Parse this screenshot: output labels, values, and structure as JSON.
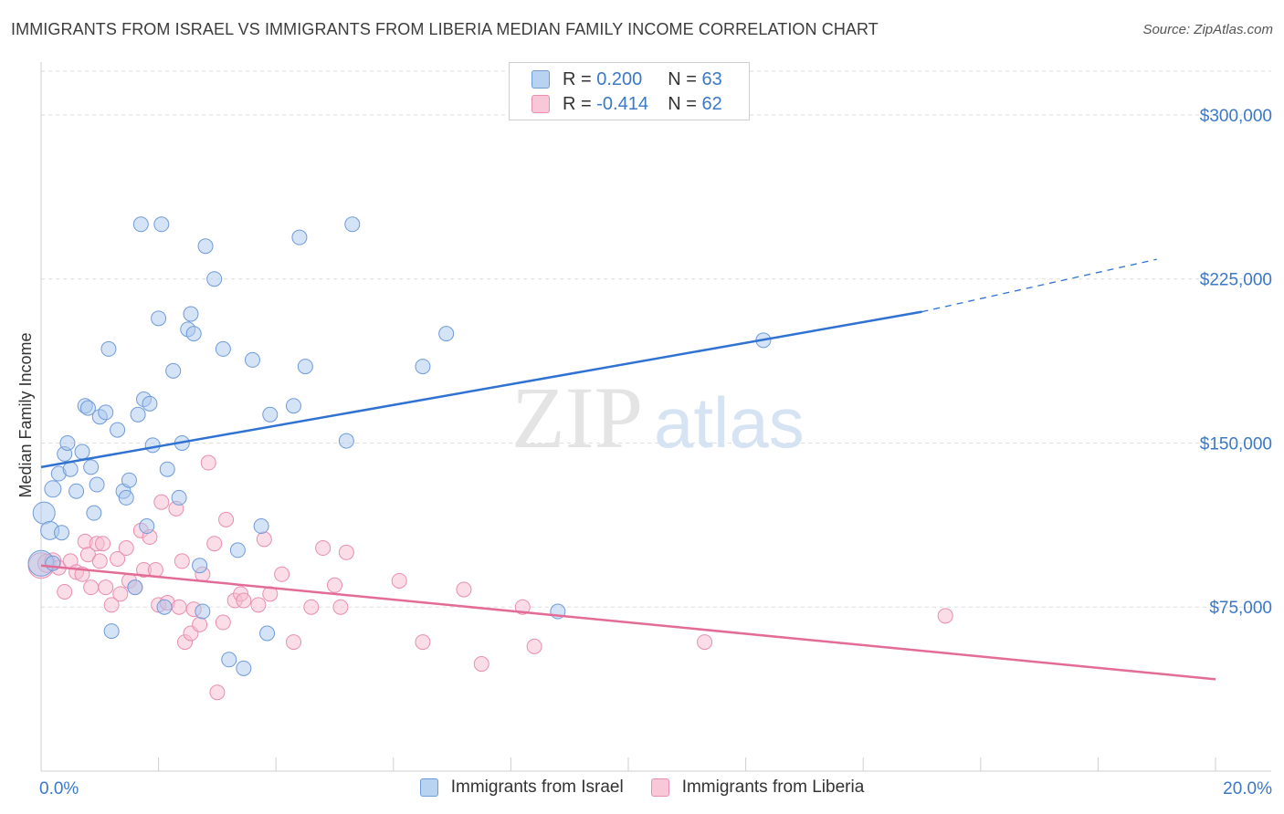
{
  "title": "IMMIGRANTS FROM ISRAEL VS IMMIGRANTS FROM LIBERIA MEDIAN FAMILY INCOME CORRELATION CHART",
  "source": "Source: ZipAtlas.com",
  "watermark": {
    "zip": "ZIP",
    "atlas": "atlas"
  },
  "colors": {
    "israel_fill": "#a9c8ee",
    "israel_stroke": "#6f9bd9",
    "israel_line": "#2f72d2",
    "liberia_fill": "#f6bcd0",
    "liberia_stroke": "#e98eae",
    "liberia_line": "#e36c97",
    "tick_text": "#3a78c8"
  },
  "legend": {
    "rows": [
      {
        "r_label": "R =",
        "r_value": "0.200",
        "n_label": "N =",
        "n_value": "63"
      },
      {
        "r_label": "R =",
        "r_value": "-0.414",
        "n_label": "N =",
        "n_value": "62"
      }
    ]
  },
  "chart_data": {
    "type": "scatter",
    "title": "IMMIGRANTS FROM ISRAEL VS IMMIGRANTS FROM LIBERIA MEDIAN FAMILY INCOME CORRELATION CHART",
    "xlabel": "",
    "ylabel": "Median Family Income",
    "xlim": [
      0,
      20
    ],
    "ylim": [
      0,
      320000
    ],
    "x_tick_labels": [
      "0.0%",
      "20.0%"
    ],
    "y_ticks": [
      {
        "value": 75000,
        "label": "$75,000"
      },
      {
        "value": 150000,
        "label": "$150,000"
      },
      {
        "value": 225000,
        "label": "$225,000"
      },
      {
        "value": 300000,
        "label": "$300,000"
      }
    ],
    "grid": true,
    "series": [
      {
        "name": "Immigrants from Israel",
        "r": 0.2,
        "n": 63,
        "trend": {
          "x0": 0.0,
          "y0": 139000,
          "x1": 15.0,
          "y1": 210000,
          "dash_to_x": 19.0,
          "dash_to_y": 234000
        },
        "points": [
          [
            0.0,
            95000,
            14
          ],
          [
            0.05,
            118000,
            12
          ],
          [
            0.15,
            110000,
            10
          ],
          [
            0.2,
            129000,
            9
          ],
          [
            0.3,
            136000,
            8
          ],
          [
            0.4,
            145000,
            8
          ],
          [
            0.45,
            150000,
            8
          ],
          [
            0.5,
            138000,
            8
          ],
          [
            0.6,
            128000,
            8
          ],
          [
            0.35,
            109000,
            8
          ],
          [
            0.7,
            146000,
            8
          ],
          [
            0.75,
            167000,
            8
          ],
          [
            0.8,
            166000,
            8
          ],
          [
            0.85,
            139000,
            8
          ],
          [
            0.9,
            118000,
            8
          ],
          [
            0.95,
            131000,
            8
          ],
          [
            1.0,
            162000,
            8
          ],
          [
            1.1,
            164000,
            8
          ],
          [
            1.15,
            193000,
            8
          ],
          [
            1.3,
            156000,
            8
          ],
          [
            1.4,
            128000,
            8
          ],
          [
            1.45,
            125000,
            8
          ],
          [
            1.5,
            133000,
            8
          ],
          [
            1.6,
            84000,
            8
          ],
          [
            1.65,
            163000,
            8
          ],
          [
            1.7,
            250000,
            8
          ],
          [
            1.75,
            170000,
            8
          ],
          [
            1.8,
            112000,
            8
          ],
          [
            1.85,
            168000,
            8
          ],
          [
            1.9,
            149000,
            8
          ],
          [
            2.0,
            207000,
            8
          ],
          [
            2.05,
            250000,
            8
          ],
          [
            2.1,
            75000,
            8
          ],
          [
            2.15,
            138000,
            8
          ],
          [
            2.25,
            183000,
            8
          ],
          [
            2.35,
            125000,
            8
          ],
          [
            2.4,
            150000,
            8
          ],
          [
            2.5,
            202000,
            8
          ],
          [
            2.55,
            209000,
            8
          ],
          [
            2.6,
            200000,
            8
          ],
          [
            2.7,
            94000,
            8
          ],
          [
            2.75,
            73000,
            8
          ],
          [
            2.8,
            240000,
            8
          ],
          [
            2.95,
            225000,
            8
          ],
          [
            3.1,
            193000,
            8
          ],
          [
            3.2,
            51000,
            8
          ],
          [
            3.35,
            101000,
            8
          ],
          [
            3.45,
            47000,
            8
          ],
          [
            3.6,
            188000,
            8
          ],
          [
            3.75,
            112000,
            8
          ],
          [
            3.85,
            63000,
            8
          ],
          [
            3.9,
            163000,
            8
          ],
          [
            4.3,
            167000,
            8
          ],
          [
            4.4,
            244000,
            8
          ],
          [
            4.5,
            185000,
            8
          ],
          [
            5.2,
            151000,
            8
          ],
          [
            5.3,
            250000,
            8
          ],
          [
            6.5,
            185000,
            8
          ],
          [
            6.9,
            200000,
            8
          ],
          [
            8.8,
            73000,
            8
          ],
          [
            12.3,
            197000,
            8
          ],
          [
            1.2,
            64000,
            8
          ],
          [
            0.2,
            95000,
            8
          ]
        ]
      },
      {
        "name": "Immigrants from Liberia",
        "r": -0.414,
        "n": 62,
        "trend": {
          "x0": 0.0,
          "y0": 94000,
          "x1": 20.0,
          "y1": 42000
        },
        "points": [
          [
            0.0,
            94000,
            14
          ],
          [
            0.1,
            95000,
            10
          ],
          [
            0.2,
            96000,
            9
          ],
          [
            0.3,
            93000,
            8
          ],
          [
            0.4,
            82000,
            8
          ],
          [
            0.5,
            96000,
            8
          ],
          [
            0.6,
            91000,
            8
          ],
          [
            0.7,
            90000,
            8
          ],
          [
            0.75,
            105000,
            8
          ],
          [
            0.8,
            99000,
            8
          ],
          [
            0.85,
            84000,
            8
          ],
          [
            0.95,
            104000,
            8
          ],
          [
            1.0,
            96000,
            8
          ],
          [
            1.05,
            104000,
            8
          ],
          [
            1.1,
            84000,
            8
          ],
          [
            1.2,
            76000,
            8
          ],
          [
            1.3,
            97000,
            8
          ],
          [
            1.35,
            81000,
            8
          ],
          [
            1.45,
            102000,
            8
          ],
          [
            1.5,
            87000,
            8
          ],
          [
            1.6,
            84000,
            8
          ],
          [
            1.7,
            110000,
            8
          ],
          [
            1.75,
            92000,
            8
          ],
          [
            1.85,
            107000,
            8
          ],
          [
            1.95,
            92000,
            8
          ],
          [
            2.0,
            76000,
            8
          ],
          [
            2.05,
            123000,
            8
          ],
          [
            2.15,
            77000,
            8
          ],
          [
            2.3,
            120000,
            8
          ],
          [
            2.35,
            75000,
            8
          ],
          [
            2.4,
            96000,
            8
          ],
          [
            2.45,
            59000,
            8
          ],
          [
            2.55,
            63000,
            8
          ],
          [
            2.6,
            74000,
            8
          ],
          [
            2.7,
            67000,
            8
          ],
          [
            2.75,
            90000,
            8
          ],
          [
            2.85,
            141000,
            8
          ],
          [
            2.95,
            104000,
            8
          ],
          [
            3.0,
            36000,
            8
          ],
          [
            3.1,
            68000,
            8
          ],
          [
            3.15,
            115000,
            8
          ],
          [
            3.3,
            78000,
            8
          ],
          [
            3.4,
            81000,
            8
          ],
          [
            3.45,
            78000,
            8
          ],
          [
            3.7,
            76000,
            8
          ],
          [
            3.8,
            106000,
            8
          ],
          [
            3.9,
            81000,
            8
          ],
          [
            4.1,
            90000,
            8
          ],
          [
            4.3,
            59000,
            8
          ],
          [
            4.6,
            75000,
            8
          ],
          [
            4.8,
            102000,
            8
          ],
          [
            5.0,
            85000,
            8
          ],
          [
            5.1,
            75000,
            8
          ],
          [
            5.2,
            100000,
            8
          ],
          [
            6.1,
            87000,
            8
          ],
          [
            6.5,
            59000,
            8
          ],
          [
            7.2,
            83000,
            8
          ],
          [
            7.5,
            49000,
            8
          ],
          [
            8.2,
            75000,
            8
          ],
          [
            8.4,
            57000,
            8
          ],
          [
            11.3,
            59000,
            8
          ],
          [
            15.4,
            71000,
            8
          ]
        ]
      }
    ]
  },
  "bottom_legend": [
    "Immigrants from Israel",
    "Immigrants from Liberia"
  ]
}
